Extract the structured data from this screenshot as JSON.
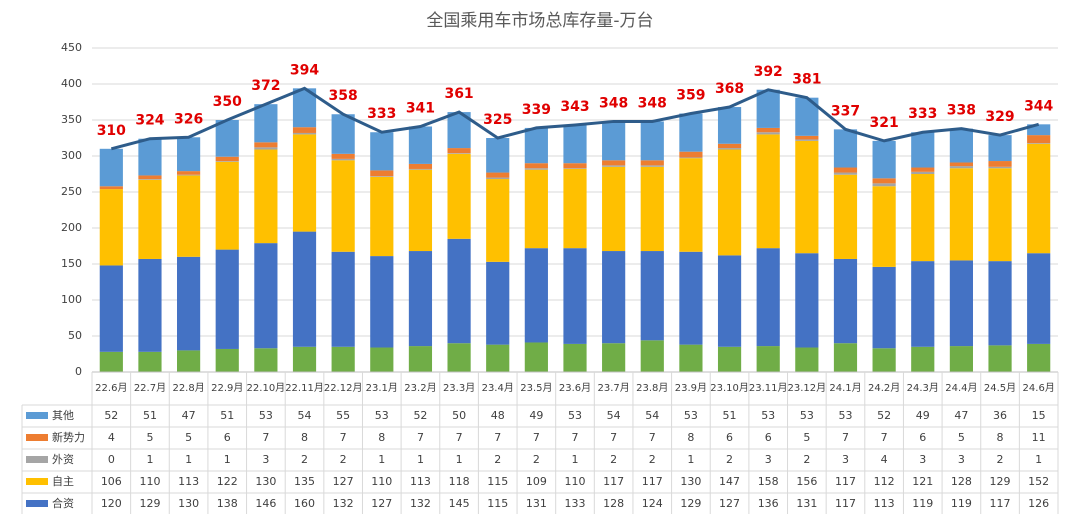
{
  "chart_data": {
    "type": "bar",
    "stacked": true,
    "title": "全国乘用车市场总库存量-万台",
    "categories": [
      "22.6月",
      "22.7月",
      "22.8月",
      "22.9月",
      "22.10月",
      "22.11月",
      "22.12月",
      "23.1月",
      "23.2月",
      "23.3月",
      "23.4月",
      "23.5月",
      "23.6月",
      "23.7月",
      "23.8月",
      "23.9月",
      "23.10月",
      "23.11月",
      "23.12月",
      "24.1月",
      "24.2月",
      "24.3月",
      "24.4月",
      "24.5月",
      "24.6月"
    ],
    "series": [
      {
        "name": "其他",
        "color": "#5b9bd5",
        "values": [
          52,
          51,
          47,
          51,
          53,
          54,
          55,
          53,
          52,
          50,
          48,
          49,
          53,
          54,
          54,
          53,
          51,
          53,
          53,
          53,
          52,
          49,
          47,
          36,
          15
        ]
      },
      {
        "name": "新势力",
        "color": "#ed7d31",
        "values": [
          4,
          5,
          5,
          6,
          7,
          8,
          7,
          8,
          7,
          7,
          7,
          7,
          7,
          7,
          7,
          8,
          6,
          6,
          5,
          7,
          7,
          6,
          5,
          8,
          11
        ]
      },
      {
        "name": "外资",
        "color": "#a5a5a5",
        "values": [
          0,
          1,
          1,
          1,
          3,
          2,
          2,
          1,
          1,
          1,
          2,
          2,
          1,
          2,
          2,
          1,
          2,
          3,
          2,
          3,
          4,
          3,
          3,
          2,
          1
        ]
      },
      {
        "name": "自主",
        "color": "#ffc000",
        "values": [
          106,
          110,
          113,
          122,
          130,
          135,
          127,
          110,
          113,
          118,
          115,
          109,
          110,
          117,
          117,
          130,
          147,
          158,
          156,
          117,
          112,
          121,
          128,
          129,
          152
        ]
      },
      {
        "name": "合资",
        "color": "#4472c4",
        "values": [
          120,
          129,
          130,
          138,
          146,
          160,
          132,
          127,
          132,
          145,
          115,
          131,
          133,
          128,
          124,
          129,
          127,
          136,
          131,
          117,
          113,
          119,
          119,
          117,
          126
        ]
      },
      {
        "color": "#70ad47",
        "values": [
          28,
          28,
          30,
          32,
          33,
          35,
          35,
          34,
          36,
          40,
          38,
          41,
          39,
          40,
          44,
          38,
          35,
          36,
          34,
          40,
          33,
          35,
          36,
          37,
          39
        ]
      }
    ],
    "totals": {
      "color": "#2e5c8a",
      "values": [
        310,
        324,
        326,
        350,
        372,
        394,
        358,
        333,
        341,
        361,
        325,
        339,
        343,
        348,
        348,
        359,
        368,
        392,
        381,
        337,
        321,
        333,
        338,
        329,
        344
      ]
    },
    "ylim": [
      0,
      450
    ],
    "yticks": [
      0,
      50,
      100,
      150,
      200,
      250,
      300,
      350,
      400,
      450
    ],
    "grid": true
  }
}
